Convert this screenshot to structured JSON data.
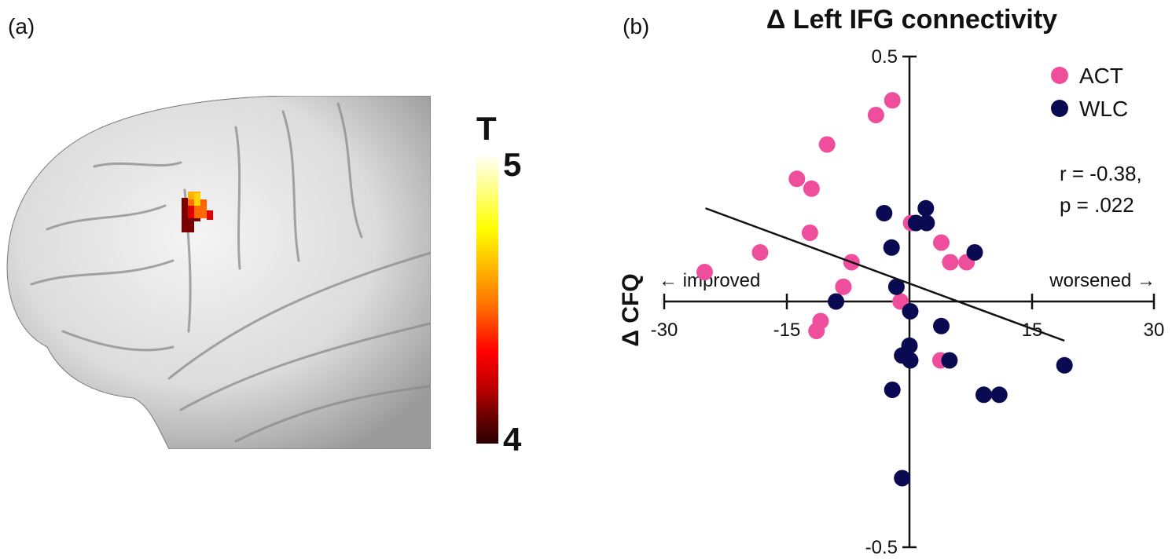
{
  "panels": {
    "a_label": "(a)",
    "b_label": "(b)"
  },
  "brain_panel": {
    "description": "lateral left-hemisphere brain surface render with cluster in left IFG",
    "colorbar": {
      "title": "T",
      "max_label": "5",
      "min_label": "4",
      "colormap": "hot"
    }
  },
  "chart_data": {
    "type": "scatter",
    "title": "Δ Left IFG connectivity",
    "xlabel": "",
    "ylabel": "Δ CFQ",
    "x_annotation_left": "← improved",
    "x_annotation_right": "worsened →",
    "xlim": [
      -30,
      30
    ],
    "ylim": [
      -0.5,
      0.5
    ],
    "x_ticks": [
      "-30",
      "-15",
      "15",
      "30"
    ],
    "y_ticks": [
      "0.5",
      "-0.5"
    ],
    "grid": false,
    "legend_position": "top-right",
    "annotation": [
      "r = -0.38,",
      "p = .022"
    ],
    "regression_line": {
      "x": [
        -25,
        19
      ],
      "y": [
        0.19,
        -0.08
      ]
    },
    "series": [
      {
        "name": "ACT",
        "color": "#ee4e9c",
        "points": [
          [
            -25.1,
            0.06
          ],
          [
            -18.3,
            0.1
          ],
          [
            -12.2,
            0.14
          ],
          [
            -7.1,
            0.08
          ],
          [
            -8.1,
            0.03
          ],
          [
            -1.1,
            0.0
          ],
          [
            -10.9,
            -0.04
          ],
          [
            -11.4,
            -0.06
          ],
          [
            -12.0,
            0.23
          ],
          [
            -13.8,
            0.25
          ],
          [
            -10.1,
            0.32
          ],
          [
            -4.1,
            0.38
          ],
          [
            -2.1,
            0.41
          ],
          [
            0.2,
            0.16
          ],
          [
            3.9,
            0.12
          ],
          [
            5.0,
            0.08
          ],
          [
            7.0,
            0.08
          ],
          [
            3.8,
            -0.12
          ]
        ]
      },
      {
        "name": "WLC",
        "color": "#0a0a52",
        "points": [
          [
            -9.0,
            -0.0
          ],
          [
            -3.1,
            0.18
          ],
          [
            -2.2,
            0.11
          ],
          [
            -1.6,
            0.03
          ],
          [
            0.8,
            0.16
          ],
          [
            2.0,
            0.19
          ],
          [
            2.1,
            0.16
          ],
          [
            8.0,
            0.1
          ],
          [
            0.1,
            -0.02
          ],
          [
            3.9,
            -0.05
          ],
          [
            0.0,
            -0.09
          ],
          [
            -0.9,
            -0.11
          ],
          [
            0.1,
            -0.12
          ],
          [
            4.9,
            -0.12
          ],
          [
            -2.1,
            -0.18
          ],
          [
            9.1,
            -0.19
          ],
          [
            11.0,
            -0.19
          ],
          [
            19.0,
            -0.13
          ],
          [
            -0.9,
            -0.36
          ]
        ]
      }
    ]
  }
}
